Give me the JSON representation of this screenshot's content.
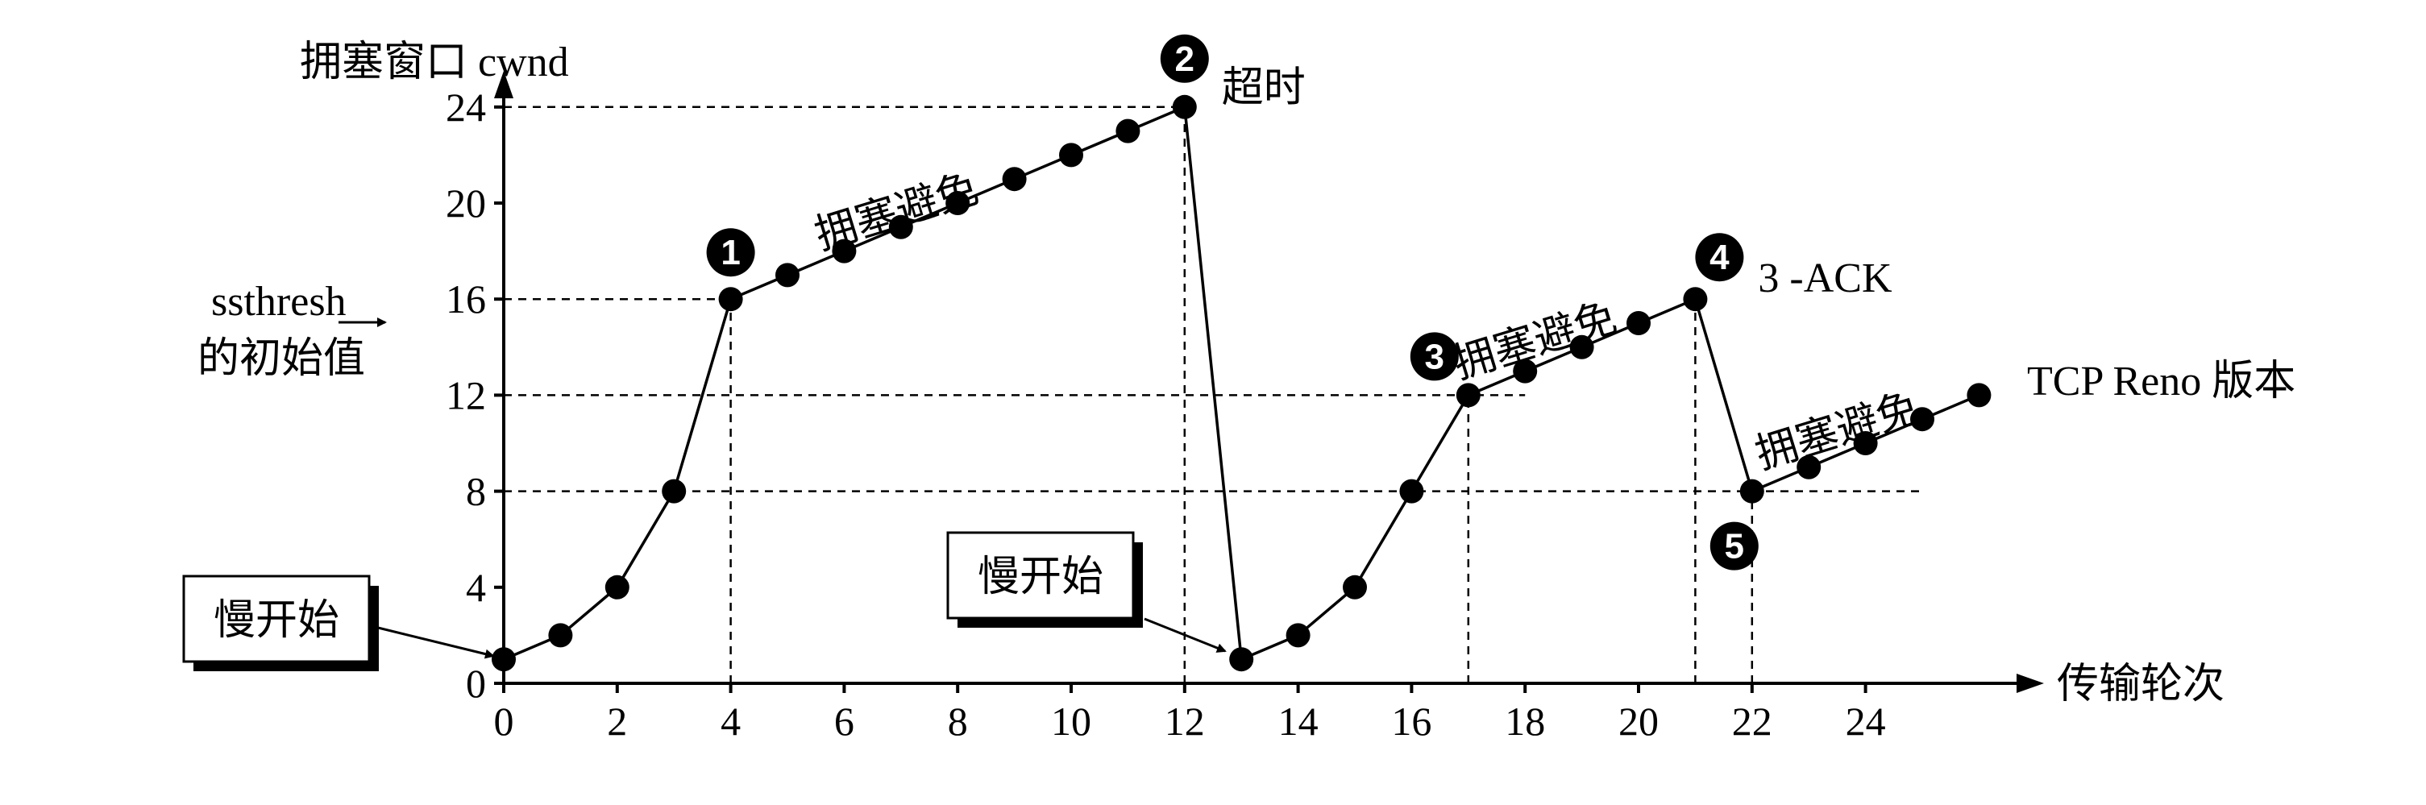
{
  "chart_data": {
    "type": "line",
    "ylabel": "拥塞窗口 cwnd",
    "xlabel": "传输轮次",
    "xlim": [
      0,
      26
    ],
    "ylim": [
      0,
      24
    ],
    "xticks": [
      0,
      2,
      4,
      6,
      8,
      10,
      12,
      14,
      16,
      18,
      20,
      22,
      24
    ],
    "yticks": [
      0,
      4,
      8,
      12,
      16,
      20,
      24
    ],
    "ytick_labels": [
      "0",
      "4",
      "8",
      "12",
      "16",
      "20",
      "24"
    ],
    "xtick_labels": [
      "0",
      "2",
      "4",
      "6",
      "8",
      "10",
      "12",
      "14",
      "16",
      "18",
      "20",
      "22",
      "24"
    ],
    "grid": false,
    "series": [
      {
        "x": [
          0,
          1,
          2,
          3,
          4,
          5,
          6,
          7,
          8,
          9,
          10,
          11,
          12,
          13,
          14,
          15,
          16,
          17,
          18,
          19,
          20,
          21,
          22,
          23,
          24,
          25,
          26
        ],
        "y": [
          1,
          2,
          4,
          8,
          16,
          17,
          18,
          19,
          20,
          21,
          22,
          23,
          24,
          1,
          2,
          4,
          8,
          12,
          13,
          14,
          15,
          16,
          8,
          9,
          10,
          11,
          12
        ]
      }
    ],
    "reference_lines": [
      {
        "y": 24,
        "x_from": 0,
        "x_to": 12
      },
      {
        "y": 16,
        "x_from": 0,
        "x_to": 4
      },
      {
        "y": 12,
        "x_from": 0,
        "x_to": 18
      },
      {
        "y": 8,
        "x_from": 0,
        "x_to": 25
      },
      {
        "x": 4,
        "y_from": 0,
        "y_to": 16
      },
      {
        "x": 12,
        "y_from": 0,
        "y_to": 24
      },
      {
        "x": 17,
        "y_from": 0,
        "y_to": 12
      },
      {
        "x": 21,
        "y_from": 0,
        "y_to": 16
      },
      {
        "x": 22,
        "y_from": 0,
        "y_to": 8
      }
    ],
    "annotations": {
      "ssthresh_line1": "ssthresh",
      "ssthresh_line2": "的初始值",
      "timeout": "超时",
      "three_ack": "3 -ACK",
      "reno": "TCP Reno 版本",
      "ca1": "拥塞避免",
      "ca2": "拥塞避免",
      "ca3": "拥塞避免",
      "ss1": "慢开始",
      "ss2": "慢开始"
    },
    "markers": [
      {
        "label": "1",
        "x": 4,
        "y": 16
      },
      {
        "label": "2",
        "x": 12,
        "y": 24
      },
      {
        "label": "3",
        "x": 17,
        "y": 12
      },
      {
        "label": "4",
        "x": 21,
        "y": 16
      },
      {
        "label": "5",
        "x": 22,
        "y": 8
      }
    ]
  }
}
